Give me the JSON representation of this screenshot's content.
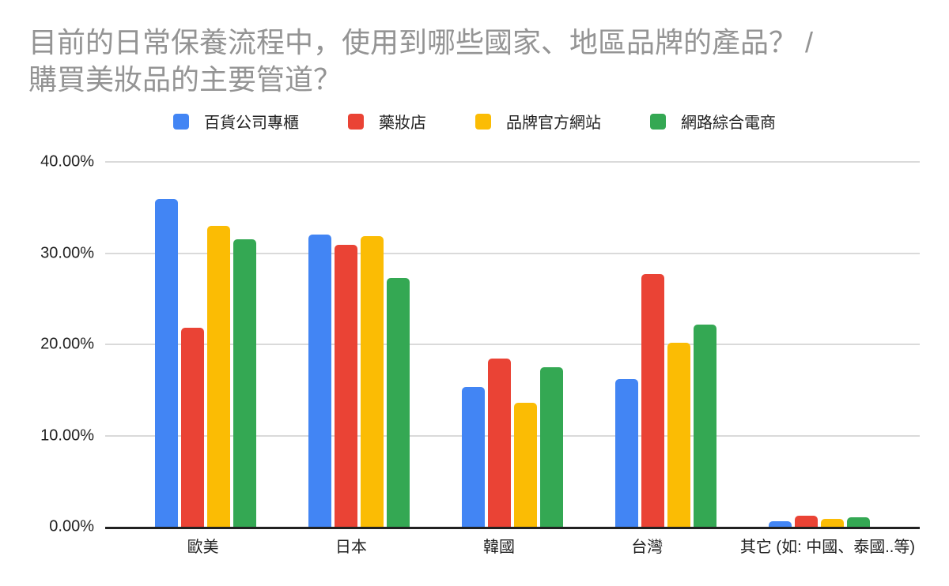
{
  "title_lines": [
    "目前的日常保養流程中，使用到哪些國家、地區品牌的產品？ /",
    "購買美妝品的主要管道？"
  ],
  "colors": {
    "title_text": "#949494",
    "axis_text": "#212121",
    "gridline": "#dadada",
    "axis_line": "#212121"
  },
  "chart_data": {
    "type": "bar",
    "title": "目前的日常保養流程中，使用到哪些國家、地區品牌的產品？ / 購買美妝品的主要管道？",
    "categories": [
      "歐美",
      "日本",
      "韓國",
      "台灣",
      "其它 (如: 中國、泰國..等)"
    ],
    "category_keys": [
      "europe-america",
      "japan",
      "korea",
      "taiwan",
      "other"
    ],
    "series": [
      {
        "name": "百貨公司專櫃",
        "key": "department-store-counter",
        "color": "#4285F4",
        "values": [
          35.9,
          32.0,
          15.3,
          16.2,
          0.6
        ]
      },
      {
        "name": "藥妝店",
        "key": "drugstore",
        "color": "#EA4335",
        "values": [
          21.8,
          30.9,
          18.4,
          27.7,
          1.2
        ]
      },
      {
        "name": "品牌官方網站",
        "key": "brand-official-website",
        "color": "#FBBC04",
        "values": [
          33.0,
          31.9,
          13.6,
          20.2,
          0.9
        ]
      },
      {
        "name": "網路綜合電商",
        "key": "online-marketplace",
        "color": "#34A853",
        "values": [
          31.5,
          27.3,
          17.5,
          22.2,
          1.0
        ]
      }
    ],
    "xlabel": "",
    "ylabel": "",
    "ylim": [
      0,
      40
    ],
    "ytick_labels": [
      "40.00%",
      "30.00%",
      "20.00%",
      "10.00%",
      "0.00%"
    ],
    "value_format": "percent",
    "grid": true,
    "legend_position": "top"
  }
}
